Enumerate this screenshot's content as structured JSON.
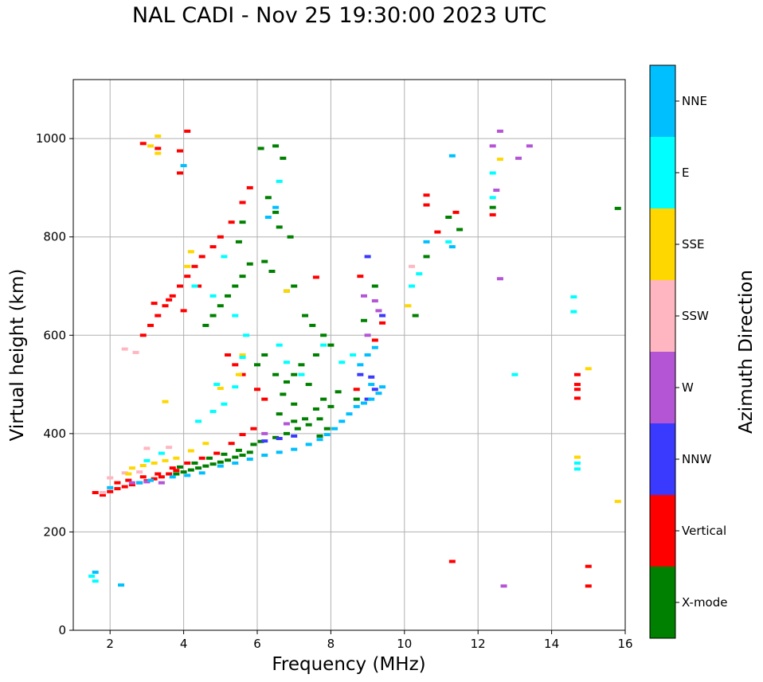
{
  "chart_data": {
    "type": "scatter",
    "title": "NAL CADI - Nov 25 19:30:00 2023 UTC",
    "xlabel": "Frequency (MHz)",
    "ylabel": "Virtual height (km)",
    "xlim": [
      1,
      16
    ],
    "ylim": [
      0,
      1120
    ],
    "xticks": [
      2,
      4,
      6,
      8,
      10,
      12,
      14,
      16
    ],
    "yticks": [
      0,
      200,
      400,
      600,
      800,
      1000
    ],
    "grid": true,
    "colorbar": {
      "label": "Azimuth Direction",
      "categories": [
        {
          "name": "X-mode",
          "color": "#008000"
        },
        {
          "name": "Vertical",
          "color": "#ff0000"
        },
        {
          "name": "NNW",
          "color": "#3a3aff"
        },
        {
          "name": "W",
          "color": "#b455d6"
        },
        {
          "name": "SSW",
          "color": "#ffb6c1"
        },
        {
          "name": "SSE",
          "color": "#ffd700"
        },
        {
          "name": "E",
          "color": "#00ffff"
        },
        {
          "name": "NNE",
          "color": "#00bfff"
        }
      ]
    },
    "series": [
      {
        "name": "X-mode",
        "points": [
          [
            3.8,
            318
          ],
          [
            4.0,
            322
          ],
          [
            4.2,
            326
          ],
          [
            4.4,
            330
          ],
          [
            4.6,
            334
          ],
          [
            4.8,
            338
          ],
          [
            5.0,
            342
          ],
          [
            5.2,
            346
          ],
          [
            5.4,
            352
          ],
          [
            5.6,
            356
          ],
          [
            5.8,
            362
          ],
          [
            3.9,
            332
          ],
          [
            4.3,
            340
          ],
          [
            4.7,
            350
          ],
          [
            5.1,
            358
          ],
          [
            5.5,
            366
          ],
          [
            5.9,
            378
          ],
          [
            6.1,
            384
          ],
          [
            6.5,
            392
          ],
          [
            6.8,
            400
          ],
          [
            7.1,
            410
          ],
          [
            7.4,
            418
          ],
          [
            7.7,
            430
          ],
          [
            4.6,
            620
          ],
          [
            4.8,
            640
          ],
          [
            5.0,
            660
          ],
          [
            5.2,
            680
          ],
          [
            5.4,
            700
          ],
          [
            5.6,
            720
          ],
          [
            5.8,
            745
          ],
          [
            5.5,
            790
          ],
          [
            5.6,
            830
          ],
          [
            6.1,
            980
          ],
          [
            6.5,
            985
          ],
          [
            6.7,
            960
          ],
          [
            6.3,
            880
          ],
          [
            6.5,
            850
          ],
          [
            6.6,
            820
          ],
          [
            6.9,
            800
          ],
          [
            6.2,
            750
          ],
          [
            6.4,
            730
          ],
          [
            7.0,
            700
          ],
          [
            6.8,
            690
          ],
          [
            7.3,
            640
          ],
          [
            7.5,
            620
          ],
          [
            7.8,
            600
          ],
          [
            8.0,
            580
          ],
          [
            7.6,
            560
          ],
          [
            7.2,
            540
          ],
          [
            7.0,
            520
          ],
          [
            6.8,
            505
          ],
          [
            7.4,
            500
          ],
          [
            7.8,
            470
          ],
          [
            8.0,
            455
          ],
          [
            6.2,
            560
          ],
          [
            6.0,
            540
          ],
          [
            6.5,
            520
          ],
          [
            6.7,
            480
          ],
          [
            7.0,
            460
          ],
          [
            7.6,
            450
          ],
          [
            7.3,
            430
          ],
          [
            7.0,
            425
          ],
          [
            6.6,
            440
          ],
          [
            7.9,
            410
          ],
          [
            7.7,
            395
          ],
          [
            8.2,
            485
          ],
          [
            8.7,
            470
          ],
          [
            8.9,
            630
          ],
          [
            9.2,
            700
          ],
          [
            10.3,
            640
          ],
          [
            10.6,
            760
          ],
          [
            11.5,
            815
          ],
          [
            11.2,
            840
          ],
          [
            12.4,
            860
          ],
          [
            15.8,
            858
          ]
        ]
      },
      {
        "name": "Vertical",
        "points": [
          [
            1.6,
            280
          ],
          [
            1.8,
            275
          ],
          [
            2.0,
            282
          ],
          [
            2.2,
            288
          ],
          [
            2.4,
            292
          ],
          [
            2.6,
            296
          ],
          [
            2.8,
            300
          ],
          [
            3.0,
            304
          ],
          [
            3.2,
            308
          ],
          [
            3.4,
            312
          ],
          [
            3.6,
            318
          ],
          [
            3.8,
            325
          ],
          [
            2.2,
            300
          ],
          [
            2.5,
            305
          ],
          [
            2.9,
            312
          ],
          [
            3.3,
            318
          ],
          [
            3.7,
            330
          ],
          [
            4.1,
            340
          ],
          [
            4.5,
            350
          ],
          [
            4.9,
            360
          ],
          [
            5.3,
            380
          ],
          [
            5.6,
            398
          ],
          [
            5.9,
            410
          ],
          [
            2.9,
            600
          ],
          [
            3.1,
            620
          ],
          [
            3.3,
            640
          ],
          [
            3.5,
            660
          ],
          [
            3.7,
            680
          ],
          [
            3.9,
            700
          ],
          [
            4.1,
            720
          ],
          [
            4.3,
            740
          ],
          [
            4.5,
            760
          ],
          [
            4.8,
            780
          ],
          [
            5.0,
            800
          ],
          [
            5.3,
            830
          ],
          [
            5.6,
            870
          ],
          [
            5.8,
            900
          ],
          [
            3.2,
            665
          ],
          [
            3.6,
            672
          ],
          [
            4.0,
            650
          ],
          [
            4.4,
            700
          ],
          [
            5.2,
            560
          ],
          [
            5.4,
            540
          ],
          [
            5.6,
            520
          ],
          [
            6.0,
            490
          ],
          [
            6.2,
            470
          ],
          [
            3.3,
            980
          ],
          [
            3.9,
            975
          ],
          [
            3.9,
            930
          ],
          [
            4.1,
            1015
          ],
          [
            2.9,
            990
          ],
          [
            7.6,
            718
          ],
          [
            9.2,
            590
          ],
          [
            9.4,
            625
          ],
          [
            8.7,
            490
          ],
          [
            8.8,
            720
          ],
          [
            10.6,
            885
          ],
          [
            10.6,
            865
          ],
          [
            10.9,
            810
          ],
          [
            11.4,
            850
          ],
          [
            11.3,
            140
          ],
          [
            12.4,
            845
          ],
          [
            14.7,
            520
          ],
          [
            14.7,
            500
          ],
          [
            14.7,
            490
          ],
          [
            14.7,
            472
          ],
          [
            15.0,
            130
          ],
          [
            15.0,
            90
          ]
        ]
      },
      {
        "name": "NNW",
        "points": [
          [
            6.2,
            385
          ],
          [
            6.6,
            390
          ],
          [
            7.0,
            395
          ],
          [
            8.8,
            520
          ],
          [
            9.1,
            515
          ],
          [
            9.0,
            760
          ],
          [
            9.2,
            490
          ],
          [
            9.0,
            470
          ],
          [
            9.4,
            640
          ]
        ]
      },
      {
        "name": "W",
        "points": [
          [
            2.6,
            300
          ],
          [
            3.0,
            302
          ],
          [
            3.4,
            300
          ],
          [
            6.2,
            400
          ],
          [
            6.8,
            420
          ],
          [
            8.9,
            680
          ],
          [
            9.2,
            670
          ],
          [
            9.3,
            650
          ],
          [
            9.0,
            600
          ],
          [
            12.5,
            895
          ],
          [
            12.6,
            715
          ],
          [
            12.4,
            985
          ],
          [
            12.6,
            1015
          ],
          [
            13.1,
            960
          ],
          [
            13.4,
            985
          ],
          [
            12.7,
            90
          ]
        ]
      },
      {
        "name": "SSW",
        "points": [
          [
            2.0,
            310
          ],
          [
            2.4,
            320
          ],
          [
            2.8,
            322
          ],
          [
            3.0,
            370
          ],
          [
            3.6,
            372
          ],
          [
            1.8,
            280
          ],
          [
            2.4,
            572
          ],
          [
            2.7,
            565
          ],
          [
            10.2,
            740
          ]
        ]
      },
      {
        "name": "SSE",
        "points": [
          [
            2.6,
            330
          ],
          [
            2.9,
            335
          ],
          [
            3.2,
            340
          ],
          [
            3.5,
            345
          ],
          [
            3.8,
            350
          ],
          [
            4.2,
            365
          ],
          [
            4.6,
            380
          ],
          [
            2.5,
            318
          ],
          [
            3.3,
            1005
          ],
          [
            3.3,
            970
          ],
          [
            3.1,
            985
          ],
          [
            4.2,
            770
          ],
          [
            4.1,
            740
          ],
          [
            3.5,
            465
          ],
          [
            5.0,
            492
          ],
          [
            5.5,
            520
          ],
          [
            5.6,
            560
          ],
          [
            6.8,
            690
          ],
          [
            10.1,
            660
          ],
          [
            12.6,
            958
          ],
          [
            14.7,
            352
          ],
          [
            15.0,
            532
          ],
          [
            15.8,
            262
          ]
        ]
      },
      {
        "name": "E",
        "points": [
          [
            1.5,
            110
          ],
          [
            1.6,
            100
          ],
          [
            3.0,
            345
          ],
          [
            3.4,
            360
          ],
          [
            4.4,
            425
          ],
          [
            4.8,
            445
          ],
          [
            5.1,
            460
          ],
          [
            5.4,
            495
          ],
          [
            5.6,
            555
          ],
          [
            5.7,
            600
          ],
          [
            4.9,
            500
          ],
          [
            4.3,
            700
          ],
          [
            4.8,
            680
          ],
          [
            5.1,
            760
          ],
          [
            5.4,
            640
          ],
          [
            6.6,
            580
          ],
          [
            6.8,
            545
          ],
          [
            7.2,
            520
          ],
          [
            7.8,
            580
          ],
          [
            8.3,
            545
          ],
          [
            8.6,
            560
          ],
          [
            10.4,
            725
          ],
          [
            10.2,
            700
          ],
          [
            11.2,
            790
          ],
          [
            12.4,
            930
          ],
          [
            12.4,
            880
          ],
          [
            13.0,
            520
          ],
          [
            14.6,
            678
          ],
          [
            14.6,
            648
          ],
          [
            14.7,
            340
          ],
          [
            14.7,
            328
          ],
          [
            6.6,
            913
          ]
        ]
      },
      {
        "name": "NNE",
        "points": [
          [
            1.6,
            118
          ],
          [
            2.3,
            92
          ],
          [
            2.0,
            290
          ],
          [
            2.8,
            300
          ],
          [
            3.1,
            305
          ],
          [
            3.7,
            312
          ],
          [
            4.1,
            315
          ],
          [
            4.5,
            320
          ],
          [
            5.0,
            334
          ],
          [
            5.4,
            340
          ],
          [
            5.8,
            348
          ],
          [
            6.2,
            356
          ],
          [
            6.6,
            362
          ],
          [
            7.0,
            368
          ],
          [
            7.4,
            378
          ],
          [
            7.7,
            388
          ],
          [
            7.9,
            398
          ],
          [
            8.1,
            410
          ],
          [
            8.3,
            425
          ],
          [
            8.5,
            440
          ],
          [
            8.7,
            455
          ],
          [
            8.9,
            462
          ],
          [
            9.1,
            470
          ],
          [
            9.3,
            482
          ],
          [
            9.4,
            495
          ],
          [
            8.8,
            540
          ],
          [
            9.0,
            560
          ],
          [
            9.2,
            575
          ],
          [
            9.1,
            500
          ],
          [
            4.0,
            945
          ],
          [
            6.3,
            840
          ],
          [
            6.5,
            860
          ],
          [
            11.3,
            965
          ],
          [
            11.3,
            780
          ],
          [
            10.6,
            790
          ]
        ]
      }
    ]
  }
}
